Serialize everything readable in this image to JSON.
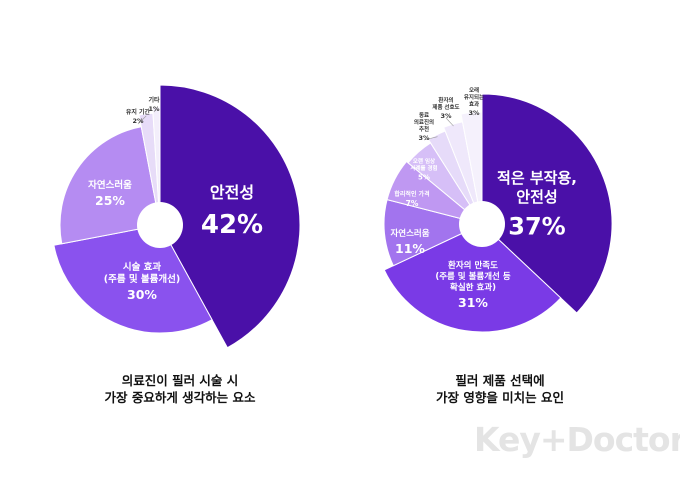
{
  "chart_data": [
    {
      "type": "pie",
      "caption": [
        "의료진이 필러 시술 시",
        "가장 중요하게 생각하는 요소"
      ],
      "slices": [
        {
          "label": [
            "안전성"
          ],
          "value_label": "42%",
          "value": 42,
          "color": "#4a10a8"
        },
        {
          "label": [
            "시술 효과",
            "(주름 및 볼륨개선)"
          ],
          "value_label": "30%",
          "value": 30,
          "color": "#8a52ee"
        },
        {
          "label": [
            "자연스러움"
          ],
          "value_label": "25%",
          "value": 25,
          "color": "#b58cf2"
        },
        {
          "label": [
            "유지 기간"
          ],
          "value_label": "2%",
          "value": 2,
          "color": "#e7dcf8"
        },
        {
          "label": [
            "기타"
          ],
          "value_label": "1%",
          "value": 1,
          "color": "#f3eefb"
        }
      ]
    },
    {
      "type": "pie",
      "caption": [
        "필러 제품 선택에",
        "가장 영향을 미치는 요인"
      ],
      "slices": [
        {
          "label": [
            "적은 부작용,",
            "안전성"
          ],
          "value_label": "37%",
          "value": 37,
          "color": "#4a10a8"
        },
        {
          "label": [
            "환자의 만족도",
            "(주름 및 볼륨개선 등",
            "확실한 효과)"
          ],
          "value_label": "31%",
          "value": 31,
          "color": "#7a3ae6"
        },
        {
          "label": [
            "자연스러움"
          ],
          "value_label": "11%",
          "value": 11,
          "color": "#a274ee"
        },
        {
          "label": [
            "합리적인 가격"
          ],
          "value_label": "7%",
          "value": 7,
          "color": "#bf98f2"
        },
        {
          "label": [
            "오랜 임상",
            "사례를 경험"
          ],
          "value_label": "5%",
          "value": 5,
          "color": "#d6bff7"
        },
        {
          "label": [
            "동료",
            "의료진의",
            "추천"
          ],
          "value_label": "3%",
          "value": 3,
          "color": "#e6dbf9"
        },
        {
          "label": [
            "환자의",
            "제품 선호도"
          ],
          "value_label": "3%",
          "value": 3,
          "color": "#efe8fb"
        },
        {
          "label": [
            "오래",
            "유지되는",
            "효과"
          ],
          "value_label": "3%",
          "value": 3,
          "color": "#f5f1fc"
        }
      ]
    }
  ],
  "logo": "Key+Doctor"
}
